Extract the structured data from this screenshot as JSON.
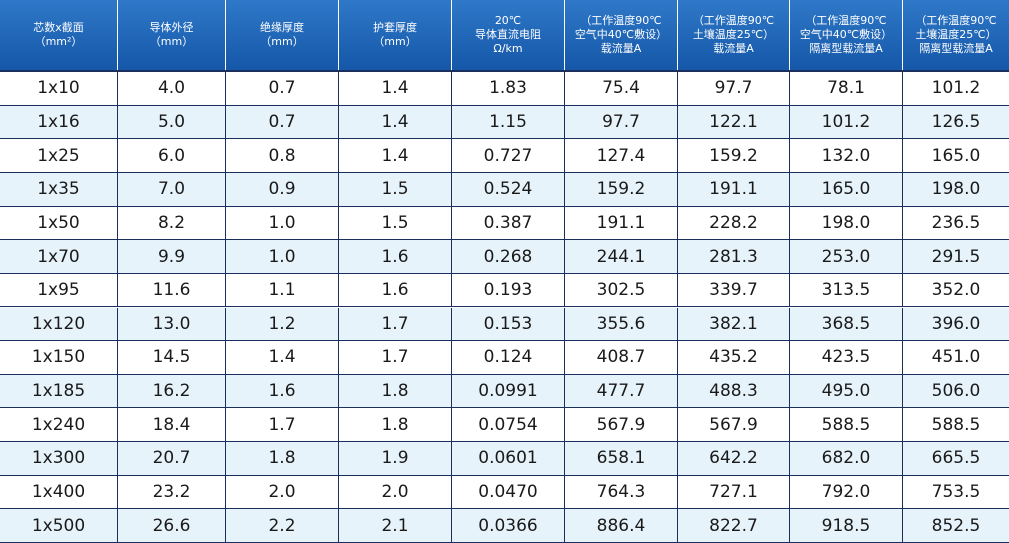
{
  "table": {
    "header": [
      [
        "芯数x截面",
        "（mm²）"
      ],
      [
        "导体外径",
        "（mm）"
      ],
      [
        "绝缘厚度",
        "（mm）"
      ],
      [
        "护套厚度",
        "（mm）"
      ],
      [
        "20℃",
        "导体直流电阻",
        "Ω/km"
      ],
      [
        "（工作温度90℃",
        "空气中40℃敷设）",
        "载流量A"
      ],
      [
        "（工作温度90℃",
        "土壤温度25℃）",
        "载流量A"
      ],
      [
        "（工作温度90℃",
        "空气中40℃敷设）",
        "隔离型载流量A"
      ],
      [
        "（工作温度90℃",
        "土壤温度25℃）",
        "隔离型载流量A"
      ]
    ],
    "rows": [
      [
        "1x10",
        "4.0",
        "0.7",
        "1.4",
        "1.83",
        "75.4",
        "97.7",
        "78.1",
        "101.2"
      ],
      [
        "1x16",
        "5.0",
        "0.7",
        "1.4",
        "1.15",
        "97.7",
        "122.1",
        "101.2",
        "126.5"
      ],
      [
        "1x25",
        "6.0",
        "0.8",
        "1.4",
        "0.727",
        "127.4",
        "159.2",
        "132.0",
        "165.0"
      ],
      [
        "1x35",
        "7.0",
        "0.9",
        "1.5",
        "0.524",
        "159.2",
        "191.1",
        "165.0",
        "198.0"
      ],
      [
        "1x50",
        "8.2",
        "1.0",
        "1.5",
        "0.387",
        "191.1",
        "228.2",
        "198.0",
        "236.5"
      ],
      [
        "1x70",
        "9.9",
        "1.0",
        "1.6",
        "0.268",
        "244.1",
        "281.3",
        "253.0",
        "291.5"
      ],
      [
        "1x95",
        "11.6",
        "1.1",
        "1.6",
        "0.193",
        "302.5",
        "339.7",
        "313.5",
        "352.0"
      ],
      [
        "1x120",
        "13.0",
        "1.2",
        "1.7",
        "0.153",
        "355.6",
        "382.1",
        "368.5",
        "396.0"
      ],
      [
        "1x150",
        "14.5",
        "1.4",
        "1.7",
        "0.124",
        "408.7",
        "435.2",
        "423.5",
        "451.0"
      ],
      [
        "1x185",
        "16.2",
        "1.6",
        "1.8",
        "0.0991",
        "477.7",
        "488.3",
        "495.0",
        "506.0"
      ],
      [
        "1x240",
        "18.4",
        "1.7",
        "1.8",
        "0.0754",
        "567.9",
        "567.9",
        "588.5",
        "588.5"
      ],
      [
        "1x300",
        "20.7",
        "1.8",
        "1.9",
        "0.0601",
        "658.1",
        "642.2",
        "682.0",
        "665.5"
      ],
      [
        "1x400",
        "23.2",
        "2.0",
        "2.0",
        "0.0470",
        "764.3",
        "727.1",
        "792.0",
        "753.5"
      ],
      [
        "1x500",
        "26.6",
        "2.2",
        "2.1",
        "0.0366",
        "886.4",
        "822.7",
        "918.5",
        "852.5"
      ]
    ]
  }
}
